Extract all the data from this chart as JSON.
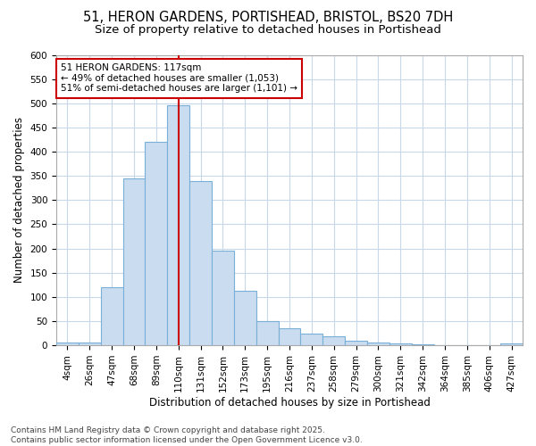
{
  "title_line1": "51, HERON GARDENS, PORTISHEAD, BRISTOL, BS20 7DH",
  "title_line2": "Size of property relative to detached houses in Portishead",
  "xlabel": "Distribution of detached houses by size in Portishead",
  "ylabel": "Number of detached properties",
  "footer_line1": "Contains HM Land Registry data © Crown copyright and database right 2025.",
  "footer_line2": "Contains public sector information licensed under the Open Government Licence v3.0.",
  "categories": [
    "4sqm",
    "26sqm",
    "47sqm",
    "68sqm",
    "89sqm",
    "110sqm",
    "131sqm",
    "152sqm",
    "173sqm",
    "195sqm",
    "216sqm",
    "237sqm",
    "258sqm",
    "279sqm",
    "300sqm",
    "321sqm",
    "342sqm",
    "364sqm",
    "385sqm",
    "406sqm",
    "427sqm"
  ],
  "values": [
    5,
    6,
    120,
    345,
    420,
    495,
    340,
    195,
    113,
    50,
    35,
    25,
    18,
    10,
    5,
    3,
    2,
    1,
    1,
    1,
    4
  ],
  "bar_color": "#c9dcf0",
  "bar_edge_color": "#7ab0d8",
  "plot_bg_color": "#ffffff",
  "fig_bg_color": "#ffffff",
  "grid_color": "#c8d8e8",
  "vline_color": "#cc0000",
  "vline_index": 5,
  "annotation_text": "51 HERON GARDENS: 117sqm\n← 49% of detached houses are smaller (1,053)\n51% of semi-detached houses are larger (1,101) →",
  "annotation_box_color": "white",
  "annotation_box_edge_color": "#cc0000",
  "ylim": [
    0,
    600
  ],
  "yticks": [
    0,
    50,
    100,
    150,
    200,
    250,
    300,
    350,
    400,
    450,
    500,
    550,
    600
  ],
  "title1_fontsize": 10.5,
  "title2_fontsize": 9.5,
  "axis_label_fontsize": 8.5,
  "tick_fontsize": 7.5,
  "footer_fontsize": 6.5,
  "annot_fontsize": 7.5,
  "fig_width": 6.0,
  "fig_height": 5.0,
  "dpi": 100
}
